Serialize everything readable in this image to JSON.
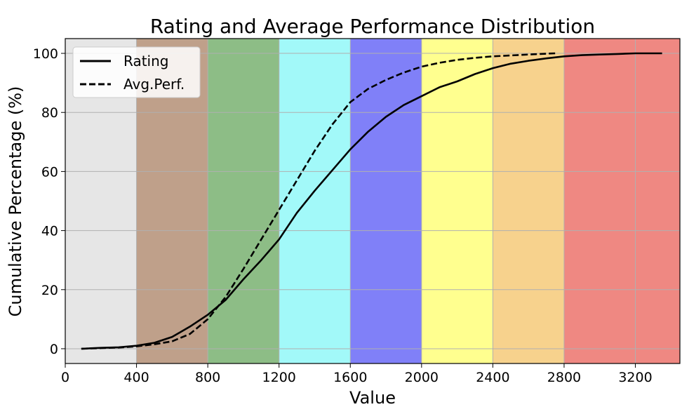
{
  "chart_data": {
    "type": "line",
    "title": "Rating and Average Performance Distribution",
    "xlabel": "Value",
    "ylabel": "Cumulative Percentage (%)",
    "xlim": [
      0,
      3450
    ],
    "ylim": [
      -5,
      105
    ],
    "x_ticks": [
      0,
      400,
      800,
      1200,
      1600,
      2000,
      2400,
      2800,
      3200
    ],
    "y_ticks": [
      0,
      20,
      40,
      60,
      80,
      100
    ],
    "grid": true,
    "legend_position": "top-left",
    "bands": [
      {
        "from": 0,
        "to": 400,
        "color": "#e6e6e6"
      },
      {
        "from": 400,
        "to": 800,
        "color": "#bfa08a"
      },
      {
        "from": 800,
        "to": 1200,
        "color": "#8dbd86"
      },
      {
        "from": 1200,
        "to": 1600,
        "color": "#a2f9f9"
      },
      {
        "from": 1600,
        "to": 2000,
        "color": "#8080f8"
      },
      {
        "from": 2000,
        "to": 2400,
        "color": "#ffff8f"
      },
      {
        "from": 2400,
        "to": 2800,
        "color": "#f7d28d"
      },
      {
        "from": 2800,
        "to": 3450,
        "color": "#ef8882"
      }
    ],
    "series": [
      {
        "name": "Rating",
        "style": "solid",
        "color": "#000000",
        "x": [
          90,
          200,
          300,
          400,
          500,
          600,
          700,
          800,
          900,
          1000,
          1100,
          1200,
          1300,
          1400,
          1500,
          1600,
          1700,
          1800,
          1900,
          2000,
          2100,
          2200,
          2300,
          2400,
          2500,
          2600,
          2700,
          2800,
          2900,
          3000,
          3100,
          3200,
          3350
        ],
        "y": [
          0,
          0.3,
          0.5,
          1.0,
          2.0,
          4.0,
          7.5,
          11.5,
          16.5,
          23.5,
          30.0,
          37.0,
          46.0,
          53.5,
          60.5,
          67.5,
          73.5,
          78.5,
          82.5,
          85.5,
          88.5,
          90.5,
          93.0,
          95.0,
          96.5,
          97.5,
          98.3,
          99.0,
          99.4,
          99.6,
          99.8,
          100.0,
          100.0
        ]
      },
      {
        "name": "Avg.Perf.",
        "style": "dashed",
        "color": "#000000",
        "x": [
          90,
          200,
          300,
          400,
          500,
          600,
          700,
          800,
          900,
          1000,
          1100,
          1200,
          1300,
          1400,
          1500,
          1600,
          1700,
          1800,
          1900,
          2000,
          2100,
          2200,
          2300,
          2400,
          2500,
          2600,
          2700,
          2750
        ],
        "y": [
          0,
          0.2,
          0.4,
          0.8,
          1.5,
          2.5,
          5.0,
          10.0,
          17.5,
          27.0,
          37.0,
          47.0,
          57.0,
          67.0,
          76.0,
          83.5,
          88.0,
          91.0,
          93.5,
          95.5,
          96.8,
          97.8,
          98.5,
          99.0,
          99.3,
          99.6,
          99.9,
          100.0
        ]
      }
    ]
  }
}
